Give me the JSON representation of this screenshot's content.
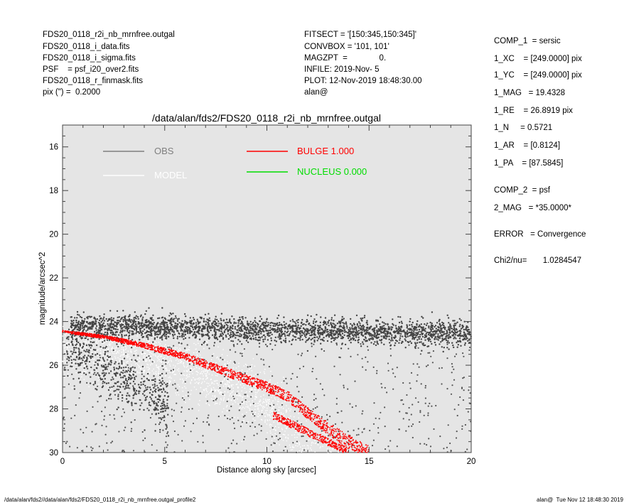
{
  "header": {
    "left": [
      "FDS20_0118_r2i_nb_mrnfree.outgal",
      "FDS20_0118_i_data.fits",
      "FDS20_0118_i_sigma.fits",
      "PSF    = psf_i20_over2.fits",
      "FDS20_0118_r_finmask.fits",
      "pix (\") =  0.2000"
    ],
    "mid": [
      "FITSECT = '[150:345,150:345]'",
      "CONVBOX = '101, 101'",
      "MAGZPT  =              0.",
      "INFILE: 2019-Nov- 5",
      "PLOT: 12-Nov-2019 18:48:30.00",
      "alan@"
    ]
  },
  "params": {
    "block1": [
      "COMP_1  = sersic",
      "1_XC    = [249.0000] pix",
      "1_YC    = [249.0000] pix",
      "1_MAG   = 19.4328",
      "1_RE    = 26.8919 pix",
      "1_N     = 0.5721",
      "1_AR    = [0.8124]",
      "1_PA    = [87.5845]"
    ],
    "block2": [
      "COMP_2  = psf",
      "2_MAG   = *35.0000*"
    ],
    "error": "ERROR   = Convergence",
    "chi2": "Chi2/nu=       1.0284547"
  },
  "footer": {
    "left": "/data/alan/fds2//data/alan/fds2/FDS20_0118_r2i_nb_mrnfree.outgal_profile2",
    "right": "alan@  Tue Nov 12 18:48:30 2019"
  },
  "chart_data": {
    "type": "scatter",
    "title": "/data/alan/fds2/FDS20_0118_r2i_nb_mrnfree.outgal",
    "xlabel": "Distance along sky [arcsec]",
    "ylabel": "magnitude/arcsec^2",
    "xlim": [
      0,
      20
    ],
    "ylim": [
      30,
      15
    ],
    "y_inverted": true,
    "xticks": [
      0,
      5,
      10,
      15,
      20
    ],
    "yticks": [
      16,
      18,
      20,
      22,
      24,
      26,
      28,
      30
    ],
    "background": "#e5e5e5",
    "legend": [
      {
        "name": "OBS",
        "color": "#7f7f7f"
      },
      {
        "name": "MODEL",
        "color": "#ffffff"
      },
      {
        "name": "BULGE  1.000",
        "color": "#ff0000"
      },
      {
        "name": "NUCLEUS  0.000",
        "color": "#00dd00"
      }
    ],
    "series": [
      {
        "name": "OBS",
        "color": "#404040",
        "description_points": [
          [
            0.5,
            24.0
          ],
          [
            2,
            24.1
          ],
          [
            5,
            24.2
          ],
          [
            10,
            24.3
          ],
          [
            15,
            24.5
          ],
          [
            20,
            24.6
          ]
        ]
      },
      {
        "name": "MODEL",
        "color": "#ffffff",
        "points": [
          [
            0,
            24.5
          ],
          [
            5,
            25.3
          ],
          [
            10,
            26.6
          ],
          [
            15,
            29.4
          ]
        ]
      },
      {
        "name": "BULGE  1.000",
        "color": "#ff0000",
        "points": [
          [
            0,
            24.45
          ],
          [
            2,
            24.7
          ],
          [
            4,
            25.1
          ],
          [
            6,
            25.6
          ],
          [
            8,
            26.3
          ],
          [
            10,
            27.0
          ],
          [
            11,
            27.4
          ],
          [
            12,
            28.2
          ],
          [
            13,
            28.9
          ],
          [
            14,
            29.5
          ],
          [
            15,
            30.0
          ]
        ]
      }
    ]
  }
}
